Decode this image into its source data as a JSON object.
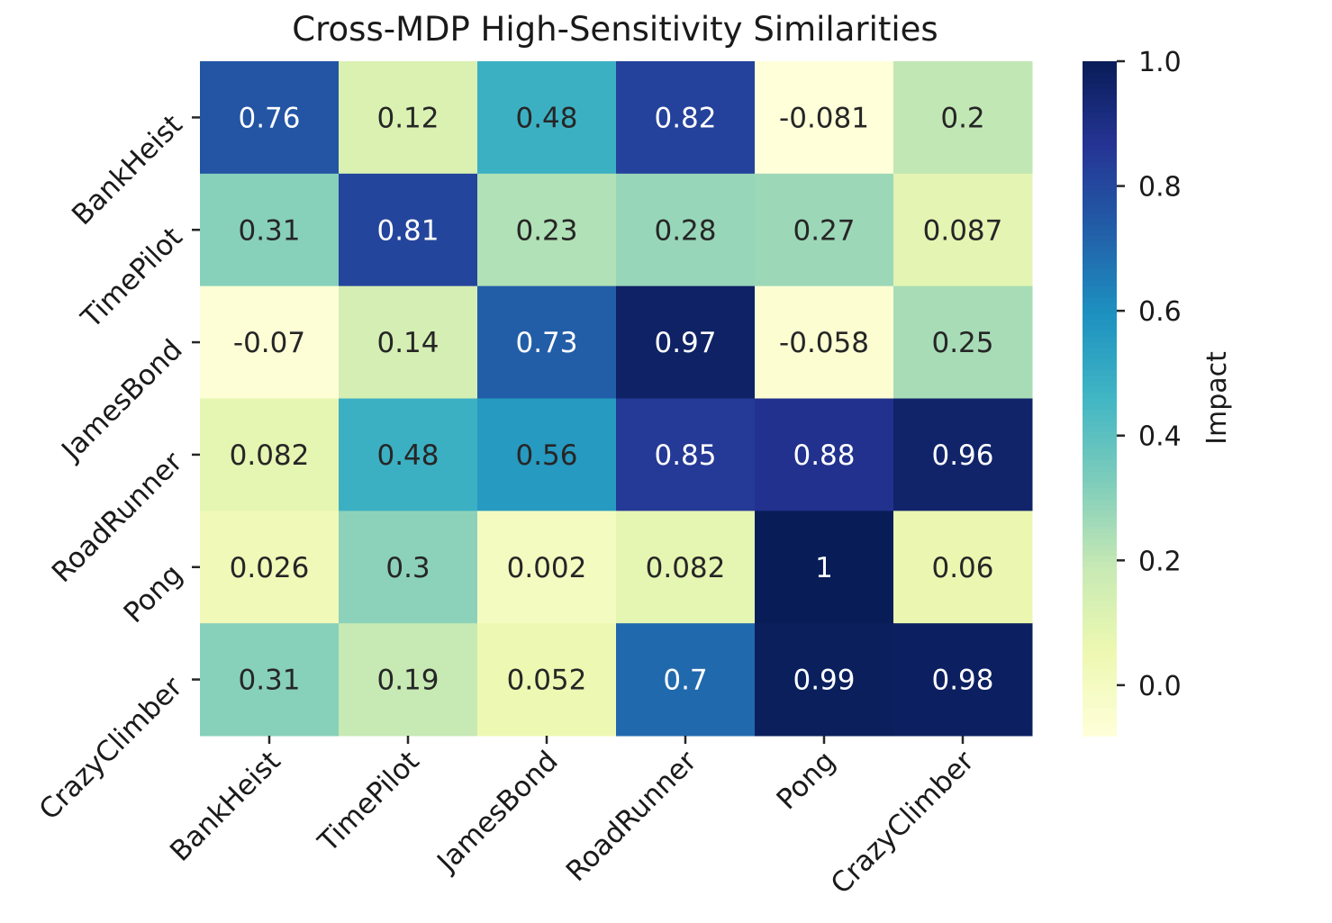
{
  "chart_data": {
    "type": "heatmap",
    "title": "Cross-MDP High-Sensitivity Similarities",
    "xlabel": "",
    "ylabel": "",
    "x_categories": [
      "BankHeist",
      "TimePilot",
      "JamesBond",
      "RoadRunner",
      "Pong",
      "CrazyClimber"
    ],
    "y_categories": [
      "BankHeist",
      "TimePilot",
      "JamesBond",
      "RoadRunner",
      "Pong",
      "CrazyClimber"
    ],
    "values": [
      [
        0.76,
        0.12,
        0.48,
        0.82,
        -0.081,
        0.2
      ],
      [
        0.31,
        0.81,
        0.23,
        0.28,
        0.27,
        0.087
      ],
      [
        -0.07,
        0.14,
        0.73,
        0.97,
        -0.058,
        0.25
      ],
      [
        0.082,
        0.48,
        0.56,
        0.85,
        0.88,
        0.96
      ],
      [
        0.026,
        0.3,
        0.002,
        0.082,
        1.0,
        0.06
      ],
      [
        0.31,
        0.19,
        0.052,
        0.7,
        0.99,
        0.98
      ]
    ],
    "cell_labels": [
      [
        "0.76",
        "0.12",
        "0.48",
        "0.82",
        "-0.081",
        "0.2"
      ],
      [
        "0.31",
        "0.81",
        "0.23",
        "0.28",
        "0.27",
        "0.087"
      ],
      [
        "-0.07",
        "0.14",
        "0.73",
        "0.97",
        "-0.058",
        "0.25"
      ],
      [
        "0.082",
        "0.48",
        "0.56",
        "0.85",
        "0.88",
        "0.96"
      ],
      [
        "0.026",
        "0.3",
        "0.002",
        "0.082",
        "1",
        "0.06"
      ],
      [
        "0.31",
        "0.19",
        "0.052",
        "0.7",
        "0.99",
        "0.98"
      ]
    ],
    "colorbar": {
      "label": "Impact",
      "vmin": -0.081,
      "vmax": 1.0,
      "ticks": [
        0.0,
        0.2,
        0.4,
        0.6,
        0.8,
        1.0
      ],
      "tick_labels": [
        "0.0",
        "0.2",
        "0.4",
        "0.6",
        "0.8",
        "1.0"
      ],
      "colormap": "YlGnBu",
      "colors": [
        "#ffffd9",
        "#edf8b1",
        "#c7e9b4",
        "#7fcdbb",
        "#41b6c4",
        "#1d91c0",
        "#225ea8",
        "#253494",
        "#081d58"
      ]
    },
    "annotation_colors": {
      "dark": "#262626",
      "light": "#ffffff"
    }
  }
}
